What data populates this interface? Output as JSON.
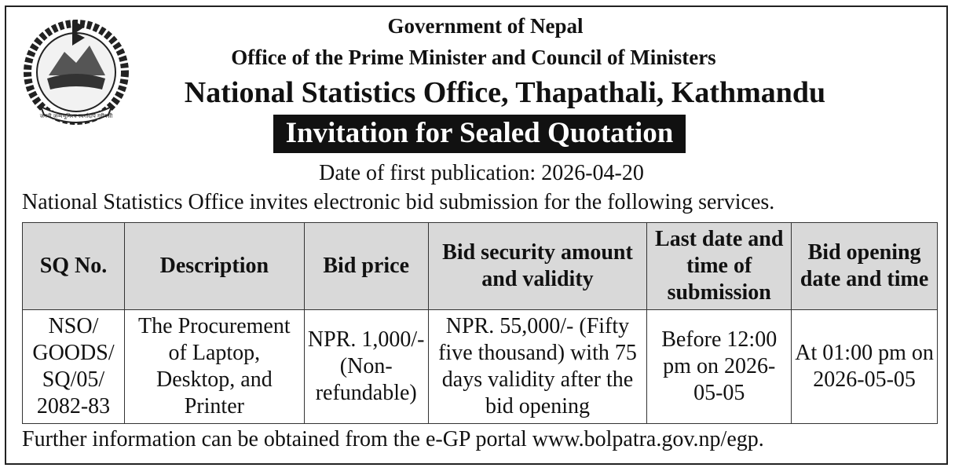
{
  "header": {
    "line1": "Government of Nepal",
    "line2": "Office of the Prime Minister and Council of Ministers",
    "line3": "National Statistics Office, Thapathali, Kathmandu",
    "title": "Invitation for Sealed Quotation",
    "emblem_motto": "जननी जन्मभूमिश्च स्वर्गादपि गरीयसी"
  },
  "publication_date": "Date of first publication: 2026-04-20",
  "intro": "National Statistics Office invites electronic bid submission for the following services.",
  "table": {
    "headers": [
      "SQ No.",
      "Description",
      "Bid price",
      "Bid security amount and validity",
      "Last date and time of submission",
      "Bid opening date and time"
    ],
    "rows": [
      [
        "NSO/ GOODS/ SQ/05/ 2082-83",
        "The Procurement of Laptop, Desktop, and Printer",
        "NPR. 1,000/- (Non-refundable)",
        "NPR. 55,000/- (Fifty five thousand) with 75 days validity after the bid opening",
        "Before 12:00 pm on 2026-05-05",
        "At 01:00 pm on 2026-05-05"
      ]
    ]
  },
  "footer": "Further information can be obtained from the e-GP portal www.bolpatra.gov.np/egp.",
  "colors": {
    "title_bg": "#111111",
    "header_bg": "#d9d9d9",
    "border": "#333333"
  }
}
